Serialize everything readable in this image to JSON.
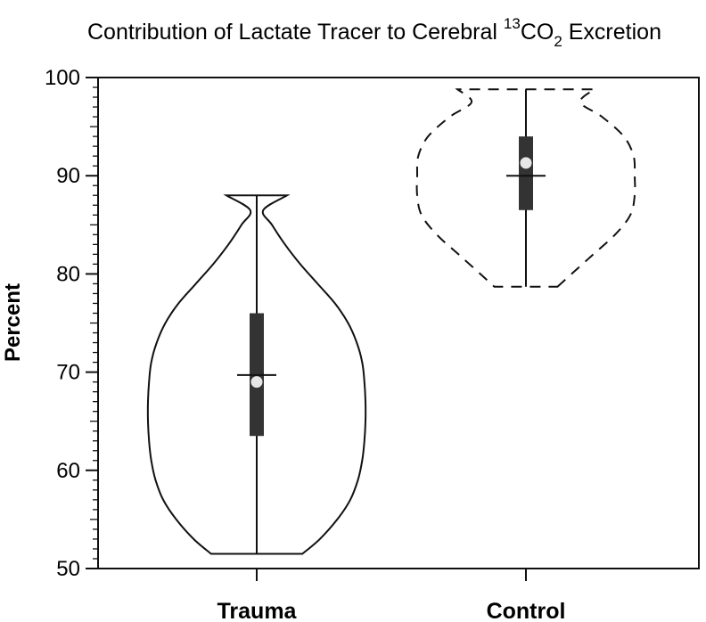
{
  "chart_data": {
    "type": "violin",
    "title_parts": [
      "Contribution of Lactate Tracer to Cerebral ",
      "13",
      "CO",
      "2",
      " Excretion"
    ],
    "xlabel": "",
    "ylabel": "Percent",
    "ylim": [
      50,
      100
    ],
    "yticks": [
      50,
      60,
      70,
      80,
      90,
      100
    ],
    "ytick_labels": [
      "50",
      "60",
      "70",
      "80",
      "90",
      "100"
    ],
    "grid": false,
    "categories": [
      "Trauma",
      "Control"
    ],
    "groups": [
      {
        "name": "Trauma",
        "min": 51.5,
        "max": 88,
        "q1": 63.5,
        "q3": 76,
        "median": 69,
        "mean": 69.7,
        "outline": "solid",
        "density": [
          [
            51.5,
            0.42
          ],
          [
            53,
            0.58
          ],
          [
            55,
            0.74
          ],
          [
            57,
            0.86
          ],
          [
            59,
            0.93
          ],
          [
            61,
            0.97
          ],
          [
            63,
            0.99
          ],
          [
            65,
            1.0
          ],
          [
            67,
            1.0
          ],
          [
            69,
            0.99
          ],
          [
            71,
            0.97
          ],
          [
            73,
            0.92
          ],
          [
            75,
            0.84
          ],
          [
            77,
            0.72
          ],
          [
            79,
            0.56
          ],
          [
            81,
            0.4
          ],
          [
            83,
            0.26
          ],
          [
            85,
            0.14
          ],
          [
            86.5,
            0.06
          ],
          [
            88,
            0.28
          ]
        ]
      },
      {
        "name": "Control",
        "min": 78.7,
        "max": 98.8,
        "q1": 86.5,
        "q3": 94,
        "median": 91.3,
        "mean": 90,
        "outline": "dashed",
        "density": [
          [
            78.7,
            0.29
          ],
          [
            80,
            0.42
          ],
          [
            82,
            0.62
          ],
          [
            84,
            0.82
          ],
          [
            86,
            0.96
          ],
          [
            88,
            1.0
          ],
          [
            90,
            1.0
          ],
          [
            92,
            0.99
          ],
          [
            94,
            0.9
          ],
          [
            96,
            0.7
          ],
          [
            97.5,
            0.5
          ],
          [
            98.8,
            0.63
          ]
        ]
      }
    ]
  }
}
